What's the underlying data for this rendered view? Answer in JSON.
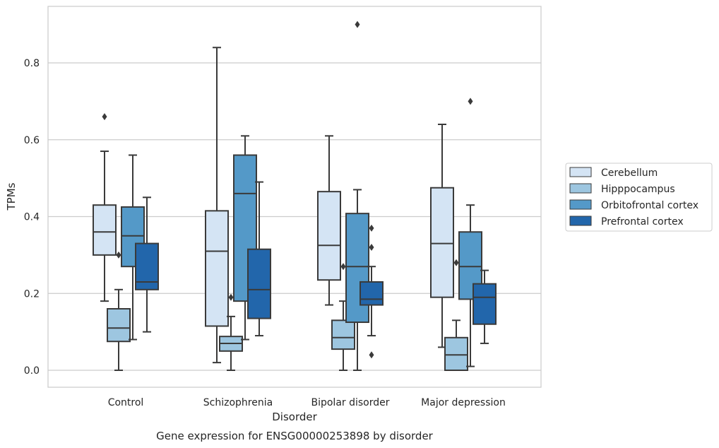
{
  "chart_data": {
    "type": "boxplot",
    "title": "",
    "caption": "Gene expression for ENSG00000253898 by disorder",
    "xlabel": "Disorder",
    "ylabel": "TPMs",
    "ylim": [
      -0.043,
      0.948
    ],
    "yticks": [
      0.0,
      0.2,
      0.4,
      0.6,
      0.8
    ],
    "ytick_labels": [
      "0.0",
      "0.2",
      "0.4",
      "0.6",
      "0.8"
    ],
    "grid": "horizontal",
    "legend_position": "right",
    "categories": [
      "Control",
      "Schizophrenia",
      "Bipolar disorder",
      "Major depression"
    ],
    "series": [
      {
        "name": "Cerebellum",
        "color": "#d4e4f4",
        "boxes": [
          {
            "whisker_low": 0.18,
            "q1": 0.3,
            "median": 0.36,
            "q3": 0.43,
            "whisker_high": 0.57,
            "outliers": [
              0.66
            ]
          },
          {
            "whisker_low": 0.02,
            "q1": 0.115,
            "median": 0.31,
            "q3": 0.415,
            "whisker_high": 0.84,
            "outliers": []
          },
          {
            "whisker_low": 0.17,
            "q1": 0.235,
            "median": 0.325,
            "q3": 0.465,
            "whisker_high": 0.61,
            "outliers": []
          },
          {
            "whisker_low": 0.06,
            "q1": 0.19,
            "median": 0.33,
            "q3": 0.475,
            "whisker_high": 0.64,
            "outliers": []
          }
        ]
      },
      {
        "name": "Hipppocampus",
        "color": "#9dc6e0",
        "boxes": [
          {
            "whisker_low": 0.0,
            "q1": 0.075,
            "median": 0.11,
            "q3": 0.16,
            "whisker_high": 0.21,
            "outliers": [
              0.3
            ]
          },
          {
            "whisker_low": 0.0,
            "q1": 0.05,
            "median": 0.07,
            "q3": 0.088,
            "whisker_high": 0.14,
            "outliers": [
              0.19
            ]
          },
          {
            "whisker_low": 0.0,
            "q1": 0.055,
            "median": 0.085,
            "q3": 0.13,
            "whisker_high": 0.18,
            "outliers": [
              0.27
            ]
          },
          {
            "whisker_low": 0.0,
            "q1": 0.0,
            "median": 0.04,
            "q3": 0.085,
            "whisker_high": 0.13,
            "outliers": [
              0.28
            ]
          }
        ]
      },
      {
        "name": "Orbitofrontal cortex",
        "color": "#5499c8",
        "boxes": [
          {
            "whisker_low": 0.08,
            "q1": 0.27,
            "median": 0.35,
            "q3": 0.425,
            "whisker_high": 0.56,
            "outliers": []
          },
          {
            "whisker_low": 0.08,
            "q1": 0.18,
            "median": 0.46,
            "q3": 0.56,
            "whisker_high": 0.61,
            "outliers": []
          },
          {
            "whisker_low": 0.0,
            "q1": 0.125,
            "median": 0.27,
            "q3": 0.408,
            "whisker_high": 0.47,
            "outliers": [
              0.9
            ]
          },
          {
            "whisker_low": 0.01,
            "q1": 0.185,
            "median": 0.27,
            "q3": 0.36,
            "whisker_high": 0.43,
            "outliers": [
              0.7
            ]
          }
        ]
      },
      {
        "name": "Prefrontal cortex",
        "color": "#2266ab",
        "boxes": [
          {
            "whisker_low": 0.1,
            "q1": 0.21,
            "median": 0.23,
            "q3": 0.33,
            "whisker_high": 0.45,
            "outliers": []
          },
          {
            "whisker_low": 0.09,
            "q1": 0.135,
            "median": 0.21,
            "q3": 0.315,
            "whisker_high": 0.49,
            "outliers": []
          },
          {
            "whisker_low": 0.09,
            "q1": 0.17,
            "median": 0.185,
            "q3": 0.23,
            "whisker_high": 0.27,
            "outliers": [
              0.37,
              0.32,
              0.04
            ]
          },
          {
            "whisker_low": 0.07,
            "q1": 0.12,
            "median": 0.19,
            "q3": 0.225,
            "whisker_high": 0.26,
            "outliers": []
          }
        ]
      }
    ]
  }
}
